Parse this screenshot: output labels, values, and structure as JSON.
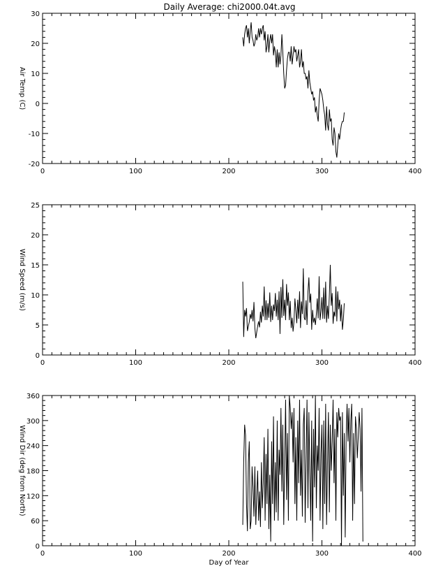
{
  "chart_data": [
    {
      "type": "line",
      "title": "Daily Average: chi2000.04t.avg",
      "xlabel": "",
      "ylabel": "Air Temp (C)",
      "xlim": [
        0,
        400
      ],
      "ylim": [
        -20,
        30
      ],
      "xticks": [
        0,
        100,
        200,
        300,
        400
      ],
      "yticks": [
        -20,
        -10,
        0,
        10,
        20,
        30
      ],
      "grid": false,
      "x_start": 215,
      "values": [
        22,
        19,
        23,
        25,
        26,
        22,
        25,
        20,
        24,
        27,
        22,
        21,
        19,
        20,
        23,
        21,
        22,
        25,
        22,
        25,
        23,
        25,
        26,
        21,
        24,
        17,
        19,
        23,
        17,
        21,
        23,
        20,
        23,
        16,
        19,
        17,
        12,
        18,
        12,
        17,
        13,
        16,
        23,
        17,
        10,
        5,
        6,
        11,
        15,
        17,
        17,
        14,
        19,
        13,
        16,
        19,
        17,
        18,
        14,
        16,
        18,
        12,
        14,
        18,
        12,
        14,
        10,
        10,
        8,
        9,
        5,
        11,
        7,
        5,
        3,
        4,
        1,
        2,
        -3,
        -1,
        -4,
        -6,
        1,
        5,
        4,
        3,
        1,
        -2,
        -4,
        -9,
        -1,
        -7,
        -9,
        -2,
        -6,
        -5,
        -12,
        -14,
        -8,
        -10,
        -16,
        -18,
        -14,
        -10,
        -12,
        -9,
        -7,
        -6,
        -6,
        -3
      ],
      "color": "#000000"
    },
    {
      "type": "line",
      "title": "",
      "xlabel": "",
      "ylabel": "Wind Speed (m/s)",
      "xlim": [
        0,
        400
      ],
      "ylim": [
        0,
        25
      ],
      "xticks": [
        0,
        100,
        200,
        300,
        400
      ],
      "yticks": [
        0,
        5,
        10,
        15,
        20,
        25
      ],
      "grid": false,
      "x_start": 215,
      "values": [
        12.2,
        3,
        7.5,
        6.4,
        7.8,
        4,
        4.8,
        5.5,
        6.8,
        6,
        7.5,
        5.6,
        8.8,
        4.5,
        2.8,
        3.8,
        4.8,
        5.6,
        4.6,
        7.2,
        5.4,
        8.2,
        6.4,
        11.4,
        5.8,
        9.1,
        5.8,
        8.6,
        6.2,
        10.4,
        5.5,
        8.2,
        5.8,
        8.4,
        7.3,
        10.3,
        6.4,
        9.2,
        5.8,
        10.6,
        3.5,
        11.3,
        6.2,
        12.6,
        6.5,
        9.2,
        5.8,
        11.8,
        8.2,
        10.4,
        5.8,
        9,
        4.5,
        6.2,
        3.9,
        5.6,
        9.4,
        7.4,
        5.3,
        9.2,
        6,
        10.6,
        4.5,
        8.9,
        6.8,
        14.4,
        6.2,
        5.8,
        9.1,
        5,
        10.5,
        12.9,
        8.7,
        10.2,
        4.2,
        7.5,
        5.4,
        6.2,
        5,
        6.8,
        9.4,
        6.1,
        13.1,
        5.8,
        7.3,
        9.6,
        6,
        11.2,
        6,
        12.2,
        5.4,
        8.2,
        6,
        10.1,
        15,
        8.2,
        10.3,
        5.2,
        7.2,
        6.4,
        11.4,
        5.6,
        10.6,
        7.6,
        9.2,
        5.6,
        8.4,
        4.2,
        5.8,
        8.6
      ],
      "color": "#000000"
    },
    {
      "type": "line",
      "title": "",
      "xlabel": "Day of Year",
      "ylabel": "Wind Dir (deg from North)",
      "xlim": [
        0,
        400
      ],
      "ylim": [
        0,
        360
      ],
      "xticks": [
        0,
        100,
        200,
        300,
        400
      ],
      "yticks": [
        0,
        60,
        120,
        180,
        240,
        300,
        360
      ],
      "grid": false,
      "x_start": 215,
      "values": [
        50,
        200,
        290,
        265,
        100,
        35,
        200,
        250,
        40,
        60,
        190,
        140,
        70,
        190,
        50,
        120,
        180,
        60,
        130,
        45,
        200,
        90,
        150,
        260,
        60,
        220,
        100,
        280,
        40,
        170,
        10,
        250,
        100,
        310,
        60,
        200,
        80,
        300,
        60,
        230,
        170,
        330,
        130,
        290,
        50,
        200,
        350,
        110,
        270,
        60,
        360,
        330,
        280,
        320,
        200,
        330,
        100,
        260,
        60,
        300,
        150,
        350,
        120,
        230,
        70,
        290,
        330,
        55,
        210,
        350,
        90,
        320,
        180,
        60,
        300,
        10,
        280,
        140,
        360,
        90,
        240,
        180,
        330,
        60,
        220,
        290,
        40,
        300,
        100,
        340,
        50,
        200,
        320,
        80,
        290,
        180,
        250,
        350,
        150,
        280,
        60,
        320,
        260,
        330,
        300,
        310,
        0,
        320,
        120,
        270,
        20,
        260,
        340,
        250,
        330,
        200,
        300,
        340,
        60,
        270,
        100,
        310,
        280,
        210,
        260,
        320,
        280,
        130,
        330,
        10
      ],
      "color": "#000000"
    }
  ]
}
